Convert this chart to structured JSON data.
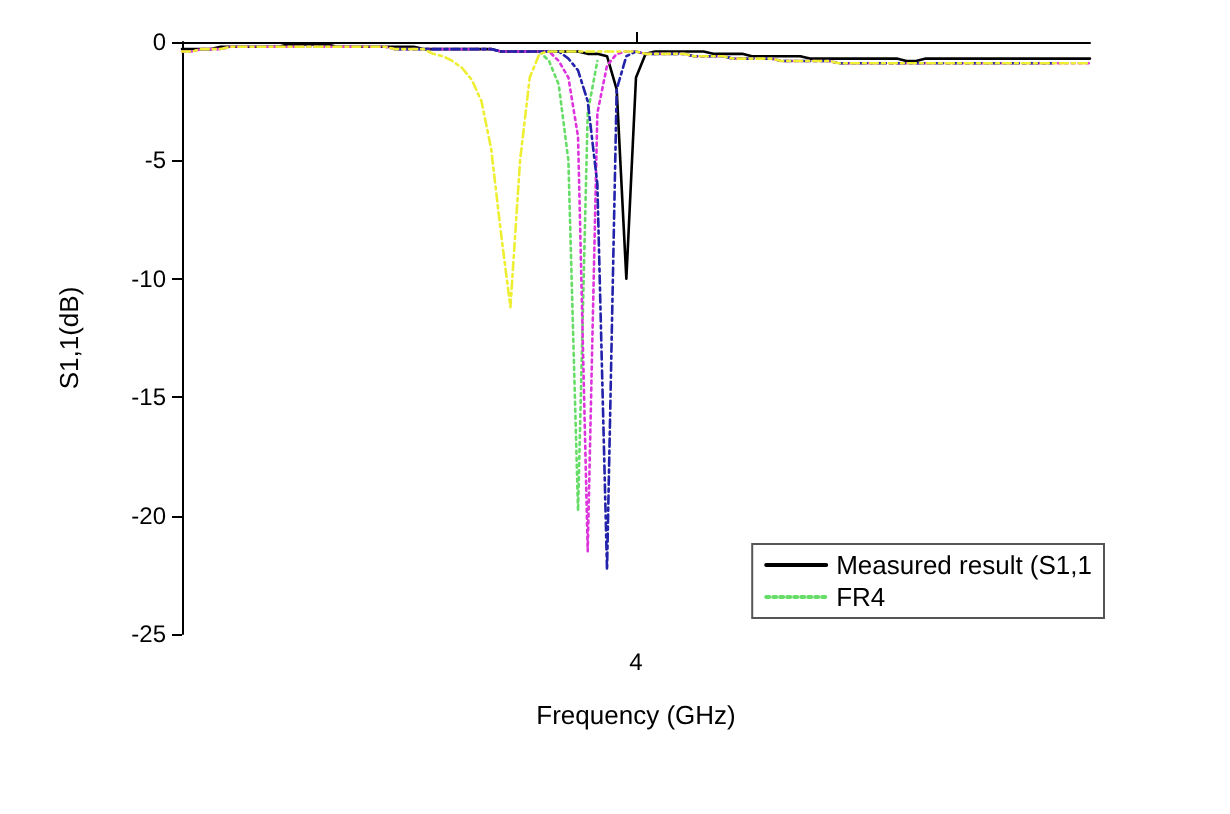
{
  "chart_data": {
    "type": "line",
    "xlabel": "Frequency (GHz)",
    "ylabel": "S1,1(dB)",
    "categories": [
      null,
      null,
      null,
      null,
      null,
      null,
      null,
      null,
      null,
      null,
      null,
      null,
      null,
      null,
      null,
      null,
      null,
      null,
      null,
      null,
      null,
      null,
      null,
      null,
      null,
      null,
      null,
      null,
      null,
      null,
      null,
      null,
      null,
      null,
      null,
      null,
      null,
      null,
      null,
      null,
      null,
      null,
      null,
      null,
      null,
      null,
      null,
      "4",
      null,
      null,
      null,
      null,
      null,
      null,
      null,
      null,
      null,
      null,
      null,
      null,
      null,
      null,
      null,
      null,
      null,
      null,
      null,
      null,
      null,
      null,
      null,
      null,
      null,
      null,
      null,
      null,
      null,
      null,
      null,
      null,
      null,
      null,
      null,
      null,
      null,
      null,
      null,
      null,
      null,
      null,
      null,
      null,
      null,
      null,
      null
    ],
    "ylim": [
      -25,
      0
    ],
    "yticks": [
      -25,
      -20,
      -15,
      -10,
      -5,
      0
    ],
    "grid": false,
    "legend": "bottom right",
    "marker": "none",
    "series": [
      {
        "name": "Measured result (S1,1",
        "color": "#000000",
        "line_style": "solid",
        "values": [
          -0.3,
          -0.3,
          -0.3,
          -0.3,
          -0.2,
          -0.2,
          -0.2,
          -0.2,
          -0.2,
          -0.2,
          -0.2,
          -0.1,
          -0.1,
          -0.1,
          -0.1,
          -0.1,
          -0.2,
          -0.2,
          -0.2,
          -0.2,
          -0.2,
          -0.2,
          -0.2,
          -0.2,
          -0.2,
          -0.3,
          -0.3,
          -0.3,
          -0.3,
          -0.3,
          -0.3,
          -0.3,
          -0.3,
          -0.4,
          -0.4,
          -0.4,
          -0.4,
          -0.4,
          -0.4,
          -0.4,
          -0.4,
          -0.4,
          -0.5,
          -0.5,
          -0.6,
          -2,
          -10,
          -1.5,
          -0.5,
          -0.4,
          -0.4,
          -0.4,
          -0.4,
          -0.4,
          -0.4,
          -0.5,
          -0.5,
          -0.5,
          -0.5,
          -0.6,
          -0.6,
          -0.6,
          -0.6,
          -0.6,
          -0.6,
          -0.7,
          -0.7,
          -0.7,
          -0.7,
          -0.7,
          -0.7,
          -0.7,
          -0.7,
          -0.7,
          -0.7,
          -0.8,
          -0.8,
          -0.7,
          -0.7,
          -0.7,
          -0.7,
          -0.7,
          -0.7,
          -0.7,
          -0.7,
          -0.7,
          -0.7,
          -0.7,
          -0.7,
          -0.7,
          -0.7,
          -0.7,
          -0.7,
          -0.7,
          -0.7
        ]
      },
      {
        "name": "FR4",
        "color": "#66dd66",
        "line_style": "dotted",
        "values": [
          null,
          null,
          null,
          null,
          null,
          null,
          null,
          null,
          null,
          null,
          null,
          null,
          null,
          null,
          null,
          null,
          null,
          null,
          null,
          null,
          null,
          null,
          null,
          null,
          null,
          null,
          null,
          null,
          null,
          null,
          null,
          null,
          null,
          null,
          null,
          null,
          null,
          -0.4,
          -0.8,
          -1.8,
          -5,
          -19.8,
          -3,
          -0.8,
          null,
          null,
          null,
          null,
          null,
          null,
          null,
          null,
          null,
          null,
          null,
          null,
          null,
          null,
          null,
          null,
          null,
          null,
          null,
          null,
          null,
          null,
          null,
          null,
          null,
          null,
          null,
          null,
          null,
          null,
          null,
          null,
          null,
          null,
          null,
          null,
          null,
          null,
          null,
          null,
          null,
          null,
          null,
          null,
          null,
          null,
          null,
          null,
          null,
          null,
          null
        ]
      },
      {
        "color": "#2222aa",
        "line_style": "dashed",
        "values": [
          null,
          null,
          null,
          null,
          null,
          null,
          null,
          null,
          null,
          null,
          null,
          null,
          null,
          null,
          null,
          null,
          null,
          null,
          null,
          null,
          null,
          null,
          -0.3,
          -0.3,
          -0.3,
          -0.3,
          -0.3,
          -0.3,
          -0.3,
          -0.3,
          -0.3,
          -0.3,
          -0.3,
          -0.4,
          -0.4,
          -0.4,
          -0.4,
          -0.4,
          -0.4,
          -0.4,
          -0.7,
          -1.2,
          -2.5,
          -6,
          -22.3,
          -2,
          -0.6,
          -0.4,
          -0.5,
          -0.5,
          -0.5,
          -0.5,
          -0.5,
          -0.6,
          -0.6,
          -0.6,
          -0.6,
          -0.7,
          -0.7,
          -0.7,
          -0.7,
          -0.7,
          -0.8,
          -0.8,
          -0.8,
          -0.8,
          -0.8,
          -0.8,
          -0.9,
          -0.9,
          -0.9,
          -0.9,
          -0.9,
          -0.9,
          -0.9,
          -0.9,
          -0.9,
          -0.9,
          -0.9,
          -0.9,
          -0.9,
          -0.9,
          -0.9,
          -0.9,
          -0.9,
          -0.9,
          -0.9,
          -0.9,
          -0.9,
          -0.9,
          -0.9,
          null,
          null,
          null,
          null
        ]
      },
      {
        "color": "#eeee33",
        "line_style": "dashed",
        "values": [
          -0.4,
          -0.4,
          -0.3,
          -0.3,
          -0.3,
          -0.2,
          -0.2,
          -0.2,
          -0.2,
          -0.2,
          -0.2,
          -0.2,
          -0.2,
          -0.2,
          -0.2,
          -0.2,
          -0.2,
          -0.2,
          -0.2,
          -0.2,
          -0.2,
          -0.2,
          -0.3,
          -0.3,
          -0.3,
          -0.3,
          -0.5,
          -0.6,
          -0.8,
          -1.1,
          -1.6,
          -2.5,
          -4.5,
          -8,
          -11.2,
          -5,
          -1.5,
          -0.5,
          -0.4,
          -0.4,
          -0.4,
          -0.4,
          -0.4,
          -0.4,
          -0.4,
          -0.4,
          -0.4,
          -0.4,
          -0.5,
          -0.5,
          -0.5,
          -0.5,
          -0.5,
          -0.6,
          -0.6,
          -0.6,
          -0.6,
          -0.7,
          -0.7,
          -0.7,
          -0.7,
          -0.7,
          -0.8,
          -0.8,
          -0.8,
          -0.8,
          -0.8,
          -0.8,
          -0.9,
          -0.9,
          -0.9,
          -0.9,
          -0.9,
          -0.9,
          -0.9,
          -0.9,
          -0.9,
          -0.9,
          -0.9,
          -0.9,
          -0.9,
          -0.9,
          -0.9,
          -0.9,
          -0.9,
          -0.9,
          -0.9,
          -0.9,
          -0.9,
          -0.9,
          -0.9,
          -0.9,
          -0.9,
          -0.9,
          -0.9
        ]
      },
      {
        "color": "#dd33dd",
        "line_style": "dotted",
        "values": [
          -0.4,
          -0.4,
          -0.3,
          -0.3,
          -0.3,
          -0.2,
          -0.2,
          -0.2,
          -0.2,
          -0.2,
          -0.2,
          -0.2,
          -0.2,
          -0.2,
          -0.2,
          -0.2,
          -0.2,
          -0.2,
          -0.2,
          -0.2,
          -0.2,
          -0.2,
          -0.3,
          -0.3,
          -0.3,
          -0.3,
          -0.3,
          -0.3,
          -0.3,
          -0.3,
          -0.3,
          -0.3,
          -0.3,
          -0.4,
          -0.4,
          -0.4,
          -0.4,
          -0.4,
          -0.4,
          -0.8,
          -1.5,
          -4,
          -21.5,
          -3,
          -1,
          -0.5,
          -0.4,
          -0.4,
          -0.5,
          -0.5,
          -0.5,
          -0.5,
          -0.5,
          -0.6,
          -0.6,
          -0.6,
          -0.6,
          -0.7,
          -0.7,
          -0.7,
          -0.7,
          -0.7,
          -0.8,
          -0.8,
          -0.8,
          -0.8,
          -0.8,
          -0.8,
          -0.9,
          -0.9,
          -0.9,
          -0.9,
          -0.9,
          -0.9,
          -0.9,
          -0.9,
          -0.9,
          -0.9,
          -0.9,
          -0.9,
          -0.9,
          -0.9,
          -0.9,
          -0.9,
          -0.9,
          -0.9,
          -0.9,
          -0.9,
          -0.9,
          -0.9,
          -0.9,
          -0.9,
          -0.9,
          -0.9,
          -0.9
        ]
      }
    ]
  }
}
